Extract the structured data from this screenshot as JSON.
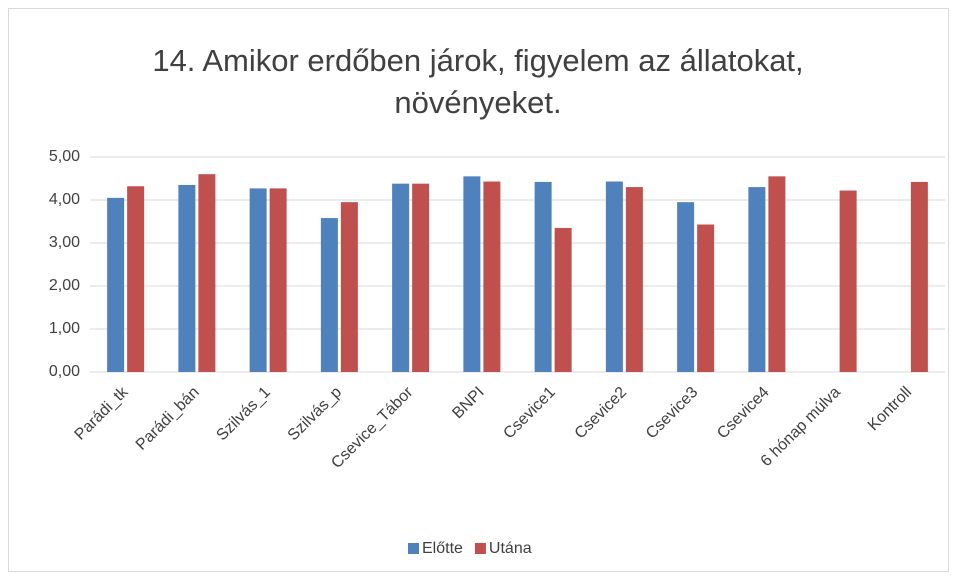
{
  "chart_data": {
    "type": "bar",
    "title": "14. Amikor erdőben járok, figyelem az állatokat, növényeket.",
    "categories": [
      "Parádi_tk",
      "Parádi_bán",
      "Szilvás_1",
      "Szilvás_p",
      "Csevice_Tábor",
      "BNPI",
      "Csevice1",
      "Csevice2",
      "Csevice3",
      "Csevice4",
      "6 hónap múlva",
      "Kontroll"
    ],
    "series": [
      {
        "name": "Előtte",
        "color": "#4f81bd",
        "values": [
          4.05,
          4.35,
          4.27,
          3.58,
          4.38,
          4.55,
          4.42,
          4.43,
          3.95,
          4.3,
          null,
          null
        ]
      },
      {
        "name": "Utána",
        "color": "#c0504d",
        "values": [
          4.32,
          4.6,
          4.27,
          3.95,
          4.38,
          4.43,
          3.35,
          4.3,
          3.43,
          4.55,
          4.22,
          4.42
        ]
      }
    ],
    "ylim": [
      0,
      5
    ],
    "yticks": [
      {
        "value": 0,
        "label": "0,00"
      },
      {
        "value": 1,
        "label": "1,00"
      },
      {
        "value": 2,
        "label": "2,00"
      },
      {
        "value": 3,
        "label": "3,00"
      },
      {
        "value": 4,
        "label": "4,00"
      },
      {
        "value": 5,
        "label": "5,00"
      }
    ],
    "grid": true,
    "legend": "bottom"
  }
}
